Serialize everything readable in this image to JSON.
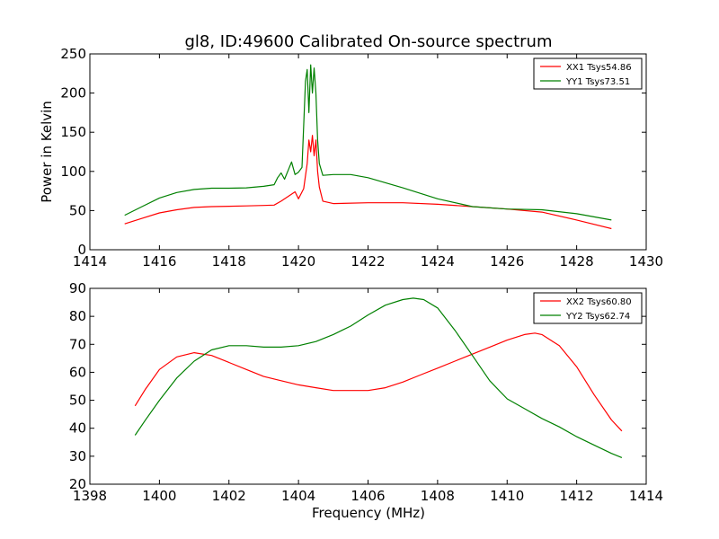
{
  "chart_data": [
    {
      "type": "line",
      "title": "gl8, ID:49600 Calibrated On-source spectrum",
      "xlabel": "",
      "ylabel": "Power in Kelvin",
      "xlim": [
        1414,
        1430
      ],
      "ylim": [
        0,
        250
      ],
      "xticks": [
        1414,
        1416,
        1418,
        1420,
        1422,
        1424,
        1426,
        1428,
        1430
      ],
      "yticks": [
        0,
        50,
        100,
        150,
        200,
        250
      ],
      "legend_position": "top-right",
      "series": [
        {
          "name": "XX1 Tsys54.86",
          "color": "#ff0000",
          "x": [
            1415.0,
            1415.5,
            1416.0,
            1416.5,
            1417.0,
            1417.5,
            1418.0,
            1418.5,
            1419.0,
            1419.3,
            1419.5,
            1419.7,
            1419.9,
            1420.0,
            1420.15,
            1420.25,
            1420.3,
            1420.35,
            1420.4,
            1420.45,
            1420.5,
            1420.55,
            1420.6,
            1420.7,
            1421.0,
            1422.0,
            1423.0,
            1424.0,
            1425.0,
            1426.0,
            1427.0,
            1428.0,
            1429.0
          ],
          "y": [
            33,
            40,
            47,
            51,
            54,
            55,
            55.5,
            56,
            56.5,
            57,
            62,
            68,
            74,
            65,
            78,
            110,
            140,
            125,
            146,
            120,
            140,
            100,
            80,
            62,
            59,
            60,
            60,
            58,
            55,
            52,
            48,
            38,
            27
          ]
        },
        {
          "name": "YY1 Tsys73.51",
          "color": "#008000",
          "x": [
            1415.0,
            1415.5,
            1416.0,
            1416.5,
            1417.0,
            1417.5,
            1418.0,
            1418.5,
            1419.0,
            1419.3,
            1419.4,
            1419.5,
            1419.6,
            1419.8,
            1419.9,
            1420.0,
            1420.1,
            1420.2,
            1420.25,
            1420.3,
            1420.35,
            1420.4,
            1420.45,
            1420.5,
            1420.55,
            1420.6,
            1420.7,
            1421.0,
            1421.5,
            1422.0,
            1423.0,
            1424.0,
            1425.0,
            1426.0,
            1427.0,
            1428.0,
            1429.0
          ],
          "y": [
            44,
            55,
            66,
            73,
            77,
            78.5,
            78.5,
            79,
            81,
            83,
            92,
            98,
            90,
            112,
            96,
            99,
            105,
            215,
            230,
            175,
            236,
            200,
            232,
            200,
            140,
            110,
            95,
            96,
            96,
            92,
            79,
            65,
            55,
            52,
            51,
            46,
            38
          ]
        }
      ]
    },
    {
      "type": "line",
      "title": "",
      "xlabel": "Frequency (MHz)",
      "ylabel": "",
      "xlim": [
        1398,
        1414
      ],
      "ylim": [
        20,
        90
      ],
      "xticks": [
        1398,
        1400,
        1402,
        1404,
        1406,
        1408,
        1410,
        1412,
        1414
      ],
      "yticks": [
        20,
        30,
        40,
        50,
        60,
        70,
        80,
        90
      ],
      "legend_position": "top-right",
      "series": [
        {
          "name": "XX2 Tsys60.80",
          "color": "#ff0000",
          "x": [
            1399.3,
            1399.6,
            1400.0,
            1400.5,
            1401.0,
            1401.5,
            1402.0,
            1402.5,
            1403.0,
            1403.5,
            1404.0,
            1404.5,
            1405.0,
            1405.5,
            1406.0,
            1406.5,
            1407.0,
            1407.5,
            1408.0,
            1408.5,
            1409.0,
            1409.5,
            1410.0,
            1410.5,
            1410.8,
            1411.0,
            1411.5,
            1412.0,
            1412.5,
            1413.0,
            1413.3
          ],
          "y": [
            48,
            54,
            61,
            65.5,
            67,
            66,
            63.5,
            61,
            58.5,
            57,
            55.5,
            54.5,
            53.5,
            53.5,
            53.5,
            54.5,
            56.5,
            59,
            61.5,
            64,
            66.5,
            69,
            71.5,
            73.5,
            74,
            73.5,
            69.5,
            62,
            52,
            43,
            39
          ]
        },
        {
          "name": "YY2 Tsys62.74",
          "color": "#008000",
          "x": [
            1399.3,
            1399.6,
            1400.0,
            1400.5,
            1401.0,
            1401.5,
            1402.0,
            1402.5,
            1403.0,
            1403.5,
            1404.0,
            1404.5,
            1405.0,
            1405.5,
            1406.0,
            1406.5,
            1407.0,
            1407.3,
            1407.6,
            1408.0,
            1408.5,
            1409.0,
            1409.5,
            1410.0,
            1410.5,
            1411.0,
            1411.5,
            1412.0,
            1412.5,
            1413.0,
            1413.3
          ],
          "y": [
            37.5,
            43,
            50,
            58,
            64,
            68,
            69.5,
            69.5,
            69,
            69,
            69.5,
            71,
            73.5,
            76.5,
            80.5,
            84,
            86,
            86.5,
            86,
            83,
            75,
            66,
            57,
            50.5,
            47,
            43.5,
            40.5,
            37,
            34,
            31,
            29.5
          ]
        }
      ]
    }
  ]
}
